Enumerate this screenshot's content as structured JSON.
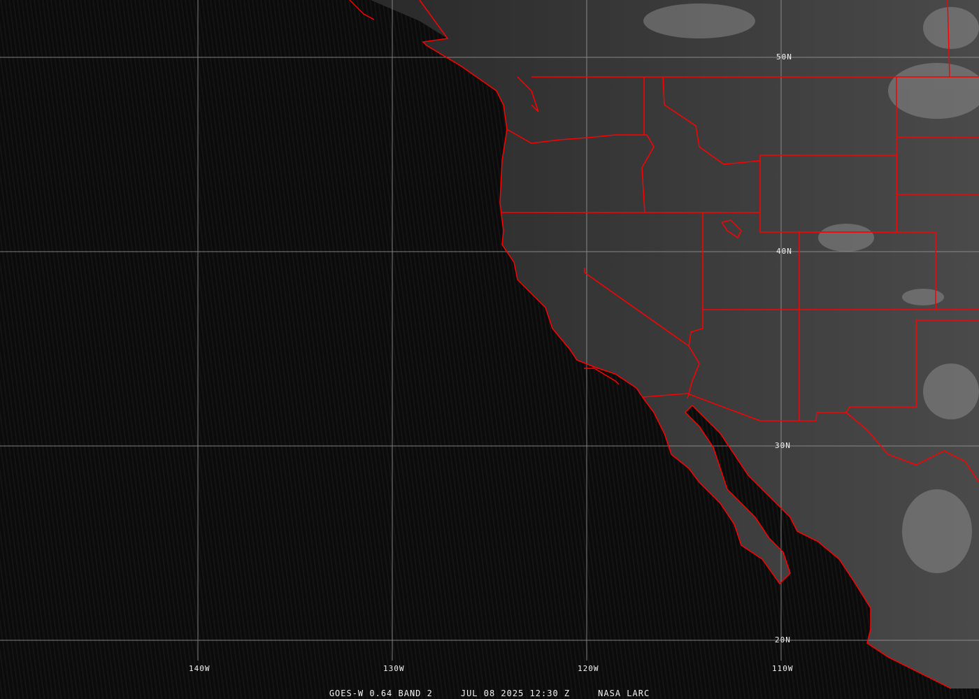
{
  "map": {
    "lat_labels": [
      "50N",
      "40N",
      "30N",
      "20N"
    ],
    "lon_labels": [
      "140W",
      "130W",
      "120W",
      "110W"
    ],
    "colors": {
      "ocean": "#0b0b0b",
      "land": "#3a3a3a",
      "boundaries": "#ff0000",
      "grid": "#9a9a9a",
      "clouds": "#a8a8a8"
    }
  },
  "caption": {
    "satellite": "GOES-W 0.64 BAND 2",
    "datetime": "JUL 08 2025 12:30 Z",
    "source": "NASA LARC"
  }
}
